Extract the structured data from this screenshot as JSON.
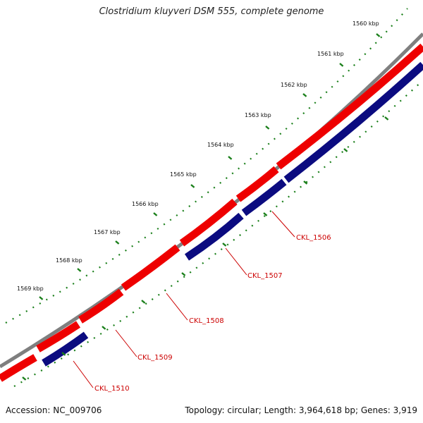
{
  "title": "Clostridium kluyveri DSM 555, complete genome",
  "footer": {
    "accession": "Accession: NC_009706",
    "summary": "Topology: circular; Length: 3,964,618 bp; Genes: 3,919"
  },
  "scale": {
    "unit": "kbp",
    "ticks": [
      {
        "kbp": 1560,
        "label": "1560 kbp"
      },
      {
        "kbp": 1561,
        "label": "1561 kbp"
      },
      {
        "kbp": 1562,
        "label": "1562 kbp"
      },
      {
        "kbp": 1563,
        "label": "1563 kbp"
      },
      {
        "kbp": 1564,
        "label": "1564 kbp"
      },
      {
        "kbp": 1565,
        "label": "1565 kbp"
      },
      {
        "kbp": 1566,
        "label": "1566 kbp"
      },
      {
        "kbp": 1567,
        "label": "1567 kbp"
      },
      {
        "kbp": 1568,
        "label": "1568 kbp"
      },
      {
        "kbp": 1569,
        "label": "1569 kbp"
      }
    ]
  },
  "colors": {
    "backbone": "#7f7f7f",
    "forward_gene": "#ee0000",
    "reverse_gene": "#0b0b80",
    "ruler": "#1a7f1a",
    "label": "#cc0000"
  },
  "genes": [
    {
      "name": "CKL_1506",
      "strand": "reverse"
    },
    {
      "name": "CKL_1507",
      "strand": "reverse"
    },
    {
      "name": "CKL_1508",
      "strand": "forward"
    },
    {
      "name": "CKL_1509",
      "strand": "forward"
    },
    {
      "name": "CKL_1510",
      "strand": "reverse"
    }
  ]
}
